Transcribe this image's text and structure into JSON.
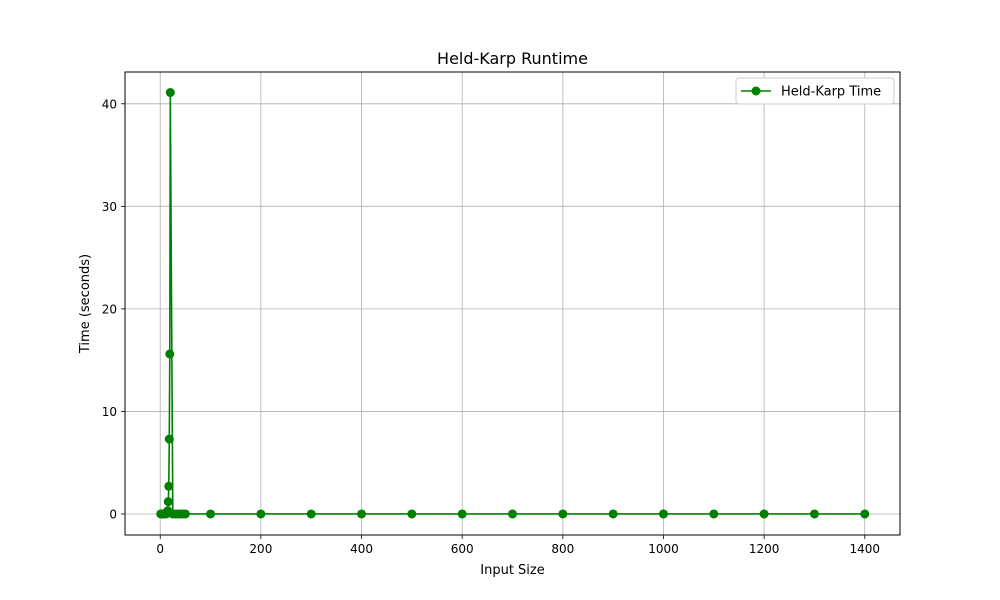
{
  "chart_data": {
    "type": "line",
    "title": "Held-Karp Runtime",
    "xlabel": "Input Size",
    "ylabel": "Time (seconds)",
    "xlim": [
      -70,
      1470
    ],
    "ylim": [
      -2.05,
      43.1
    ],
    "xticks": [
      0,
      200,
      400,
      600,
      800,
      1000,
      1200,
      1400
    ],
    "yticks": [
      0,
      10,
      20,
      30,
      40
    ],
    "grid": true,
    "legend_position": "top-right",
    "series": [
      {
        "name": "Held-Karp Time",
        "color": "#008000",
        "marker": "circle",
        "x": [
          1,
          2,
          3,
          4,
          5,
          6,
          7,
          8,
          9,
          10,
          11,
          12,
          13,
          14,
          15,
          16,
          17,
          18,
          19,
          20,
          25,
          30,
          35,
          40,
          45,
          50,
          100,
          200,
          300,
          400,
          500,
          600,
          700,
          800,
          900,
          1000,
          1100,
          1200,
          1300,
          1400
        ],
        "y": [
          0,
          0,
          0,
          0,
          0,
          0,
          0,
          0,
          0,
          0,
          0.01,
          0.02,
          0.06,
          0.14,
          0.32,
          1.2,
          2.7,
          7.3,
          15.6,
          41.1,
          0,
          0,
          0,
          0,
          0,
          0,
          0,
          0,
          0,
          0,
          0,
          0,
          0,
          0,
          0,
          0,
          0,
          0,
          0,
          0
        ]
      }
    ]
  }
}
